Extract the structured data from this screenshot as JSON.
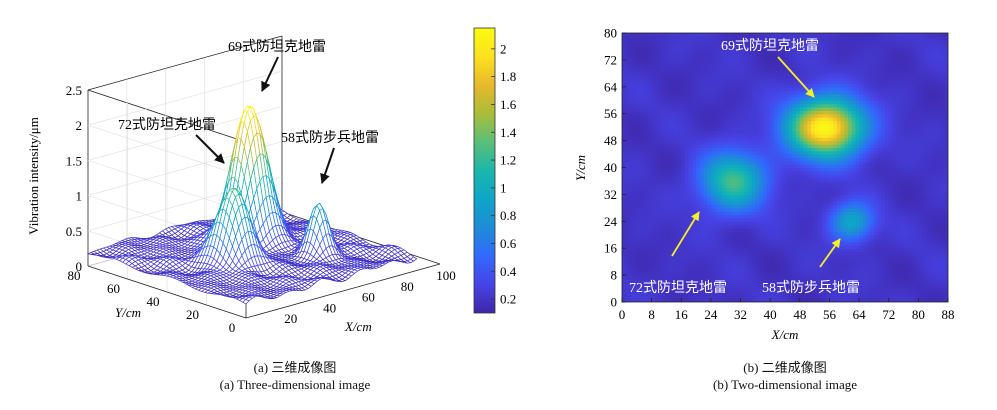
{
  "chart_data": [
    {
      "type": "surface",
      "panel": "a",
      "caption_zh": "(a) 三维成像图",
      "caption_en": "(a) Three-dimensional image",
      "xlabel": "X/cm",
      "ylabel": "Y/cm",
      "zlabel": "Vibration intensity/μm",
      "xlim": [
        0,
        100
      ],
      "ylim": [
        0,
        80
      ],
      "zlim": [
        0,
        2.5
      ],
      "xticks": [
        "20",
        "40",
        "60",
        "80",
        "100"
      ],
      "yticks": [
        "0",
        "20",
        "40",
        "60",
        "80"
      ],
      "zticks": [
        "0",
        "0.5",
        "1",
        "1.5",
        "2",
        "2.5"
      ],
      "colorbar": {
        "min": 0.1,
        "max": 2.15,
        "ticks": [
          "0.2",
          "0.4",
          "0.6",
          "0.8",
          "1",
          "1.2",
          "1.4",
          "1.6",
          "1.8",
          "2"
        ],
        "colormap": [
          "#3e26a8",
          "#4743e6",
          "#3169fd",
          "#1e8cd6",
          "#0ea5c8",
          "#1ab7ab",
          "#5bbf78",
          "#a9bd39",
          "#e8b92a",
          "#fce121",
          "#f9fb0e"
        ]
      },
      "peaks": [
        {
          "label": "69式防坦克地雷",
          "x": 55,
          "y": 52,
          "height": 2.15
        },
        {
          "label": "72式防坦克地雷",
          "x": 30,
          "y": 36,
          "height": 1.25
        },
        {
          "label": "58式防步兵地雷",
          "x": 62,
          "y": 24,
          "height": 0.95
        }
      ],
      "background_level": 0.2
    },
    {
      "type": "heatmap",
      "panel": "b",
      "caption_zh": "(b) 二维成像图",
      "caption_en": "(b) Two-dimensional image",
      "xlabel": "X/cm",
      "ylabel": "Y/cm",
      "xlim": [
        0,
        88
      ],
      "ylim": [
        0,
        80
      ],
      "xticks": [
        "0",
        "8",
        "16",
        "24",
        "32",
        "40",
        "48",
        "56",
        "64",
        "72",
        "80",
        "88"
      ],
      "yticks": [
        "0",
        "8",
        "16",
        "24",
        "32",
        "40",
        "48",
        "56",
        "64",
        "72",
        "80"
      ],
      "annotations": [
        {
          "label": "69式防坦克地雷",
          "x": 55,
          "y": 52
        },
        {
          "label": "72式防坦克地雷",
          "x": 30,
          "y": 36
        },
        {
          "label": "58式防步兵地雷",
          "x": 62,
          "y": 24
        }
      ]
    }
  ]
}
